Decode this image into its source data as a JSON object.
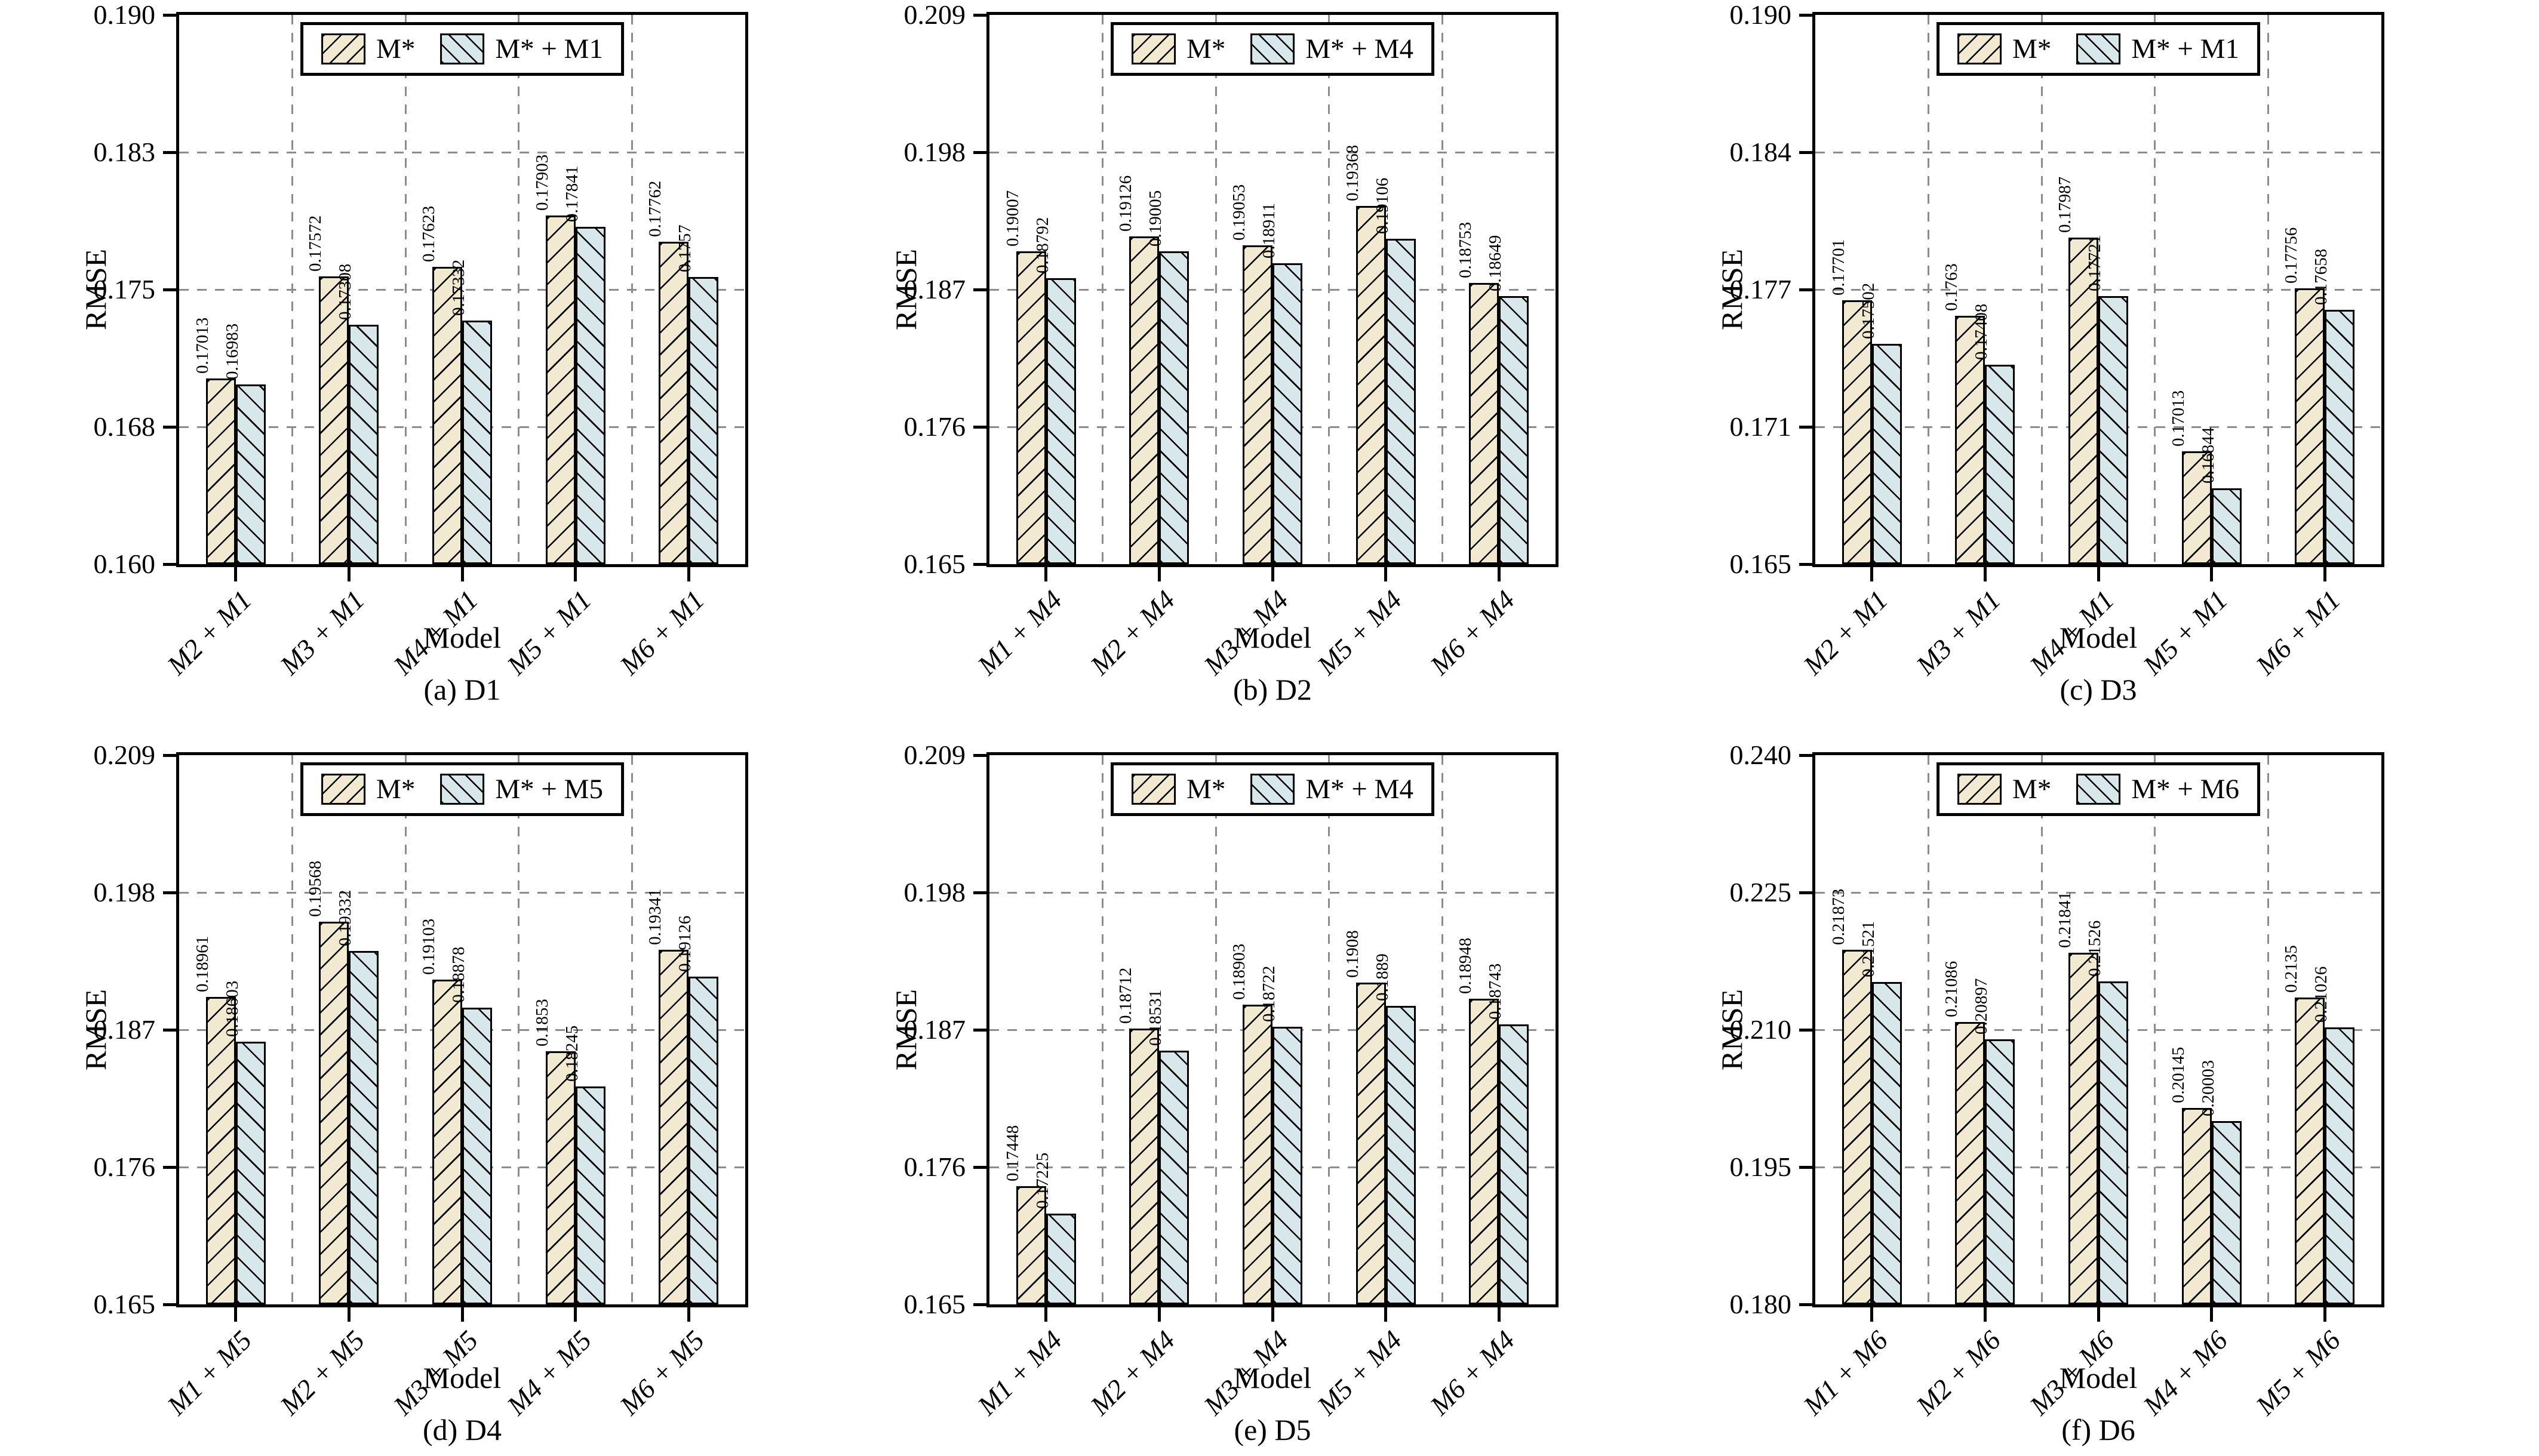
{
  "colors": {
    "m_star_fill": "#f2ead0",
    "combo_fill": "#d8e8ea",
    "hatch_line": "#000000",
    "gridline": "#8c8c8c",
    "frame": "#000000",
    "text": "#000000"
  },
  "chart_data": [
    {
      "panel": "a",
      "type": "bar",
      "caption": "(a) D1",
      "xlabel": "Model",
      "ylabel": "RMSE",
      "ylim": [
        0.16,
        0.19
      ],
      "grid": "dashed",
      "legend_position": "top-center",
      "yticks": [
        "0.160",
        "0.168",
        "0.175",
        "0.183",
        "0.190"
      ],
      "categories": [
        "M2 + M1",
        "M3 + M1",
        "M4 + M1",
        "M5 + M1",
        "M6 + M1"
      ],
      "series": [
        {
          "name": "M*",
          "values": [
            0.17013,
            0.17572,
            0.17623,
            0.17903,
            0.17762
          ],
          "labels": [
            "0.17013",
            "0.17572",
            "0.17623",
            "0.17903",
            "0.17762"
          ]
        },
        {
          "name": "M* + M1",
          "values": [
            0.16983,
            0.17308,
            0.17332,
            0.17841,
            0.1757
          ],
          "labels": [
            "0.16983",
            "0.17308",
            "0.17332",
            "0.17841",
            "0.1757"
          ]
        }
      ]
    },
    {
      "panel": "b",
      "type": "bar",
      "caption": "(b) D2",
      "xlabel": "Model",
      "ylabel": "RMSE",
      "ylim": [
        0.165,
        0.209
      ],
      "grid": "dashed",
      "legend_position": "top-center",
      "yticks": [
        "0.165",
        "0.176",
        "0.187",
        "0.198",
        "0.209"
      ],
      "categories": [
        "M1 + M4",
        "M2 + M4",
        "M3 + M4",
        "M5 + M4",
        "M6 + M4"
      ],
      "series": [
        {
          "name": "M*",
          "values": [
            0.19007,
            0.19126,
            0.19053,
            0.19368,
            0.18753
          ],
          "labels": [
            "0.19007",
            "0.19126",
            "0.19053",
            "0.19368",
            "0.18753"
          ]
        },
        {
          "name": "M* + M4",
          "values": [
            0.18792,
            0.19005,
            0.18911,
            0.19106,
            0.18649
          ],
          "labels": [
            "0.18792",
            "0.19005",
            "0.18911",
            "0.19106",
            "0.18649"
          ]
        }
      ]
    },
    {
      "panel": "c",
      "type": "bar",
      "caption": "(c) D3",
      "xlabel": "Model",
      "ylabel": "RMSE",
      "ylim": [
        0.165,
        0.19
      ],
      "grid": "dashed",
      "legend_position": "top-center",
      "yticks": [
        "0.165",
        "0.171",
        "0.177",
        "0.184",
        "0.190"
      ],
      "categories": [
        "M2 + M1",
        "M3 + M1",
        "M4 + M1",
        "M5 + M1",
        "M6 + M1"
      ],
      "series": [
        {
          "name": "M*",
          "values": [
            0.17701,
            0.1763,
            0.17987,
            0.17013,
            0.17756
          ],
          "labels": [
            "0.17701",
            "0.1763",
            "0.17987",
            "0.17013",
            "0.17756"
          ]
        },
        {
          "name": "M* + M1",
          "values": [
            0.17502,
            0.17408,
            0.17721,
            0.16844,
            0.17658
          ],
          "labels": [
            "0.17502",
            "0.17408",
            "0.17721",
            "0.16844",
            "0.17658"
          ]
        }
      ]
    },
    {
      "panel": "d",
      "type": "bar",
      "caption": "(d) D4",
      "xlabel": "Model",
      "ylabel": "RMSE",
      "ylim": [
        0.165,
        0.209
      ],
      "grid": "dashed",
      "legend_position": "top-center",
      "yticks": [
        "0.165",
        "0.176",
        "0.187",
        "0.198",
        "0.209"
      ],
      "categories": [
        "M1 + M5",
        "M2 + M5",
        "M3 + M5",
        "M4 + M5",
        "M6 + M5"
      ],
      "series": [
        {
          "name": "M*",
          "values": [
            0.18961,
            0.19568,
            0.19103,
            0.1853,
            0.19341
          ],
          "labels": [
            "0.18961",
            "0.19568",
            "0.19103",
            "0.1853",
            "0.19341"
          ]
        },
        {
          "name": "M* + M5",
          "values": [
            0.18603,
            0.19332,
            0.18878,
            0.18245,
            0.19126
          ],
          "labels": [
            "0.18603",
            "0.19332",
            "0.18878",
            "0.18245",
            "0.19126"
          ]
        }
      ]
    },
    {
      "panel": "e",
      "type": "bar",
      "caption": "(e) D5",
      "xlabel": "Model",
      "ylabel": "RMSE",
      "ylim": [
        0.165,
        0.209
      ],
      "grid": "dashed",
      "legend_position": "top-center",
      "yticks": [
        "0.165",
        "0.176",
        "0.187",
        "0.198",
        "0.209"
      ],
      "categories": [
        "M1 + M4",
        "M2 + M4",
        "M3 + M4",
        "M5 + M4",
        "M6 + M4"
      ],
      "series": [
        {
          "name": "M*",
          "values": [
            0.17448,
            0.18712,
            0.18903,
            0.1908,
            0.18948
          ],
          "labels": [
            "0.17448",
            "0.18712",
            "0.18903",
            "0.1908",
            "0.18948"
          ]
        },
        {
          "name": "M* + M4",
          "values": [
            0.17225,
            0.18531,
            0.18722,
            0.1889,
            0.18743
          ],
          "labels": [
            "0.17225",
            "0.18531",
            "0.18722",
            "0.1889",
            "0.18743"
          ]
        }
      ]
    },
    {
      "panel": "f",
      "type": "bar",
      "caption": "(f) D6",
      "xlabel": "Model",
      "ylabel": "RMSE",
      "ylim": [
        0.18,
        0.24
      ],
      "grid": "dashed",
      "legend_position": "top-center",
      "yticks": [
        "0.180",
        "0.195",
        "0.210",
        "0.225",
        "0.240"
      ],
      "categories": [
        "M1 + M6",
        "M2 + M6",
        "M3 + M6",
        "M4 + M6",
        "M5 + M6"
      ],
      "series": [
        {
          "name": "M*",
          "values": [
            0.21873,
            0.21086,
            0.21841,
            0.20145,
            0.2135
          ],
          "labels": [
            "0.21873",
            "0.21086",
            "0.21841",
            "0.20145",
            "0.2135"
          ]
        },
        {
          "name": "M* + M6",
          "values": [
            0.21521,
            0.20897,
            0.21526,
            0.20003,
            0.21026
          ],
          "labels": [
            "0.21521",
            "0.20897",
            "0.21526",
            "0.20003",
            "0.21026"
          ]
        }
      ]
    }
  ]
}
